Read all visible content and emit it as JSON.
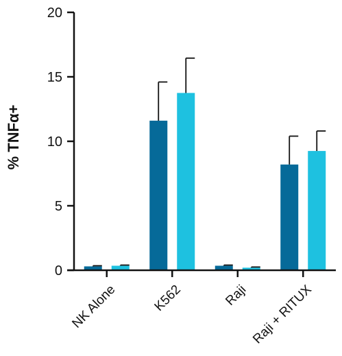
{
  "chart_data": {
    "type": "bar",
    "title": "",
    "xlabel": "",
    "ylabel": "% TNFα+",
    "ylim": [
      0,
      20
    ],
    "yticks": [
      "0",
      "5",
      "10",
      "15",
      "20"
    ],
    "categories": [
      "NK Alone",
      "K562",
      "Raji",
      "Raji + RITUX"
    ],
    "series": [
      {
        "color": "#066a99",
        "values": [
          0.3,
          11.6,
          0.35,
          8.2
        ],
        "errors": [
          0.05,
          3.0,
          0.05,
          2.2
        ]
      },
      {
        "color": "#1ec1e0",
        "values": [
          0.35,
          13.75,
          0.2,
          9.25
        ],
        "errors": [
          0.05,
          2.7,
          0.05,
          1.55
        ]
      }
    ],
    "grid": false,
    "legend": "none"
  }
}
